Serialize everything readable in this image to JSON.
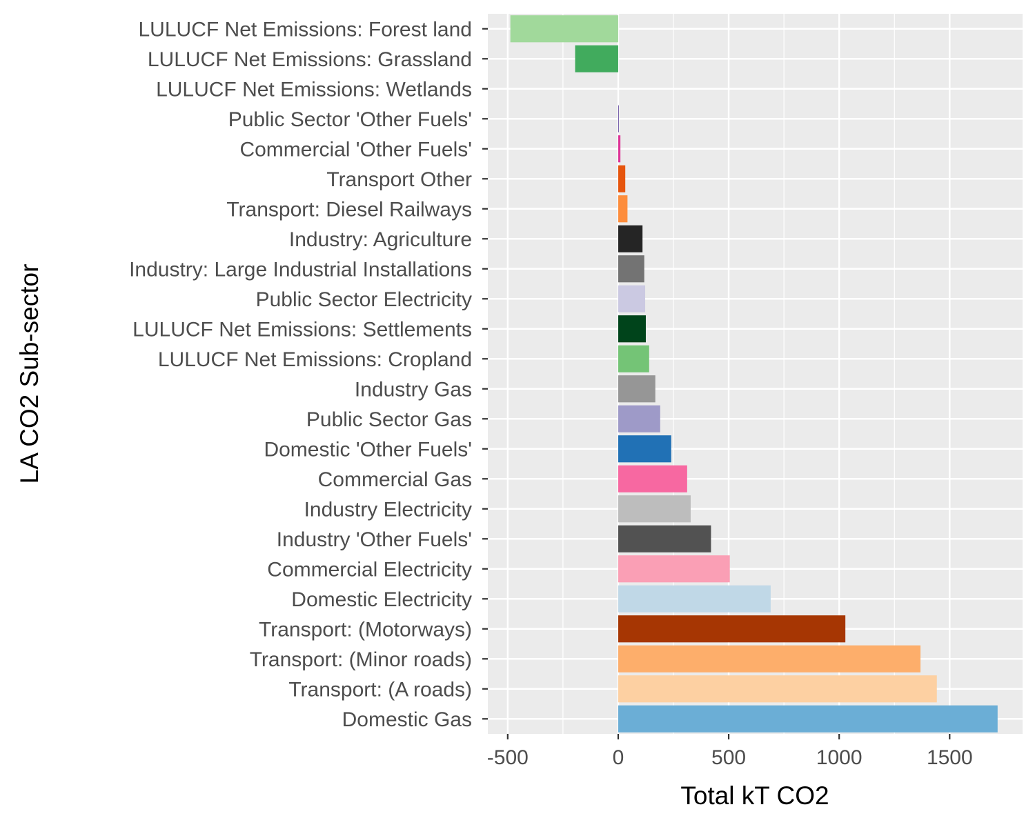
{
  "chart_data": {
    "type": "bar",
    "orientation": "horizontal",
    "xlabel": "Total kT CO2",
    "ylabel": "LA CO2 Sub-sector",
    "xlim": [
      -590,
      1830
    ],
    "x_ticks": [
      -500,
      0,
      500,
      1000,
      1500
    ],
    "grid": true,
    "legend": "none",
    "panel_background": "#ebebeb",
    "bars": [
      {
        "category": "LULUCF Net Emissions: Forest land",
        "value": -488,
        "color": "#a1d99b"
      },
      {
        "category": "LULUCF Net Emissions: Grassland",
        "value": -195,
        "color": "#41ab5d"
      },
      {
        "category": "LULUCF Net Emissions: Wetlands",
        "value": 0,
        "color": "#c7e9c0"
      },
      {
        "category": "Public Sector 'Other Fuels'",
        "value": 3,
        "color": "#6a51a3"
      },
      {
        "category": "Commercial 'Other Fuels'",
        "value": 10,
        "color": "#dd3497"
      },
      {
        "category": "Transport Other",
        "value": 32,
        "color": "#e6550d"
      },
      {
        "category": "Transport: Diesel Railways",
        "value": 42,
        "color": "#fd8d3c"
      },
      {
        "category": "Industry: Agriculture",
        "value": 110,
        "color": "#252525"
      },
      {
        "category": "Industry: Large Industrial Installations",
        "value": 118,
        "color": "#737373"
      },
      {
        "category": "Public Sector Electricity",
        "value": 122,
        "color": "#cbc9e2"
      },
      {
        "category": "LULUCF Net Emissions: Settlements",
        "value": 125,
        "color": "#00441b"
      },
      {
        "category": "LULUCF Net Emissions: Cropland",
        "value": 140,
        "color": "#74c476"
      },
      {
        "category": "Industry Gas",
        "value": 168,
        "color": "#969696"
      },
      {
        "category": "Public Sector Gas",
        "value": 190,
        "color": "#9e9ac8"
      },
      {
        "category": "Domestic 'Other Fuels'",
        "value": 240,
        "color": "#2171b5"
      },
      {
        "category": "Commercial Gas",
        "value": 312,
        "color": "#f768a1"
      },
      {
        "category": "Industry Electricity",
        "value": 328,
        "color": "#bdbdbd"
      },
      {
        "category": "Industry 'Other Fuels'",
        "value": 420,
        "color": "#525252"
      },
      {
        "category": "Commercial Electricity",
        "value": 505,
        "color": "#fa9fb5"
      },
      {
        "category": "Domestic Electricity",
        "value": 690,
        "color": "#c0d8e7"
      },
      {
        "category": "Transport: (Motorways)",
        "value": 1028,
        "color": "#a63603"
      },
      {
        "category": "Transport: (Minor roads)",
        "value": 1368,
        "color": "#fdae6b"
      },
      {
        "category": "Transport: (A roads)",
        "value": 1442,
        "color": "#fdd0a2"
      },
      {
        "category": "Domestic Gas",
        "value": 1717,
        "color": "#6baed6"
      }
    ]
  }
}
